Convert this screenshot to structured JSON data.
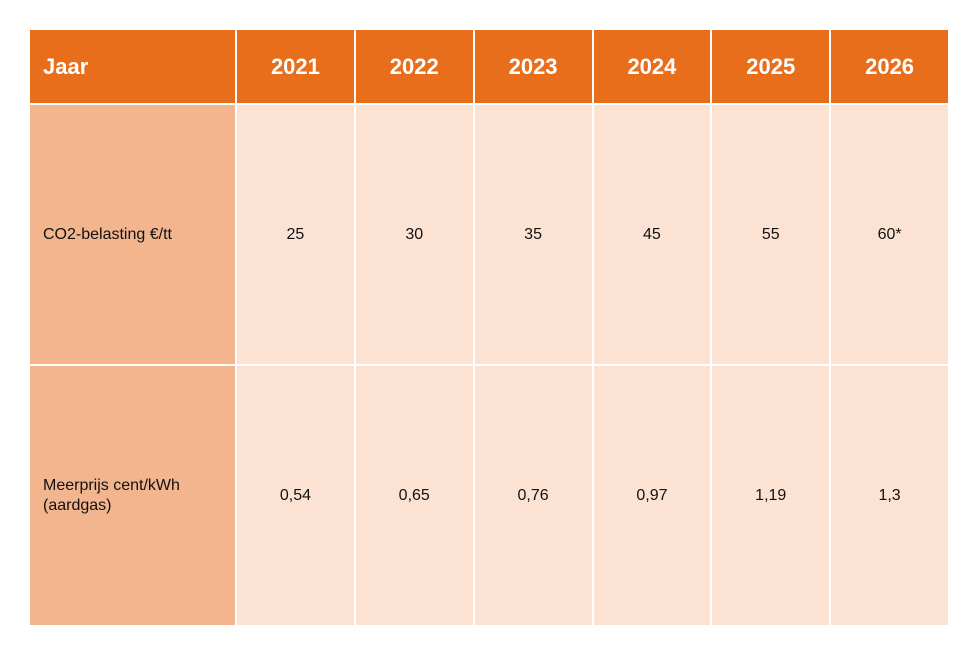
{
  "colors": {
    "header_bg": "#e86e1c",
    "label_bg": "#f3b58e",
    "cell_bg": "#fbe2d3"
  },
  "table": {
    "header": [
      "Jaar",
      "2021",
      "2022",
      "2023",
      "2024",
      "2025",
      "2026"
    ],
    "rows": [
      {
        "label": "CO2-belasting €/tt",
        "values": [
          "25",
          "30",
          "35",
          "45",
          "55",
          "60*"
        ]
      },
      {
        "label": "Meerprijs cent/kWh (aardgas)",
        "values": [
          "0,54",
          "0,65",
          "0,76",
          "0,97",
          "1,19",
          "1,3"
        ]
      }
    ]
  }
}
